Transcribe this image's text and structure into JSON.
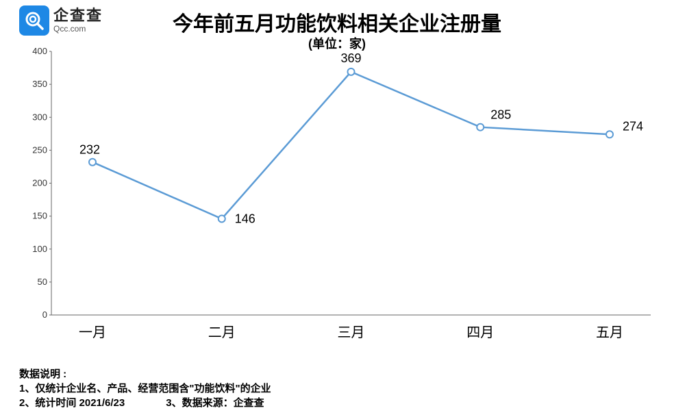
{
  "logo": {
    "cn": "企查查",
    "en": "Qcc.com"
  },
  "title": "今年前五月功能饮料相关企业注册量",
  "subtitle": "(单位：家)",
  "chart": {
    "type": "line",
    "categories": [
      "一月",
      "二月",
      "三月",
      "四月",
      "五月"
    ],
    "values": [
      232,
      146,
      369,
      285,
      274
    ],
    "line_color": "#5b9bd5",
    "marker_color": "#5b9bd5",
    "marker_size": 5,
    "ylim": [
      0,
      400
    ],
    "ytick_step": 50,
    "background_color": "#ffffff",
    "axis_color": "#666666",
    "label_fontsize": 18,
    "xtick_fontsize": 20,
    "ytick_fontsize": 13
  },
  "footnotes": {
    "heading": "数据说明 :",
    "line1": "1、仅统计企业名、产品、经营范围含\"功能饮料\"的企业",
    "line2a": "2、统计时间 2021/6/23",
    "line2b": "3、数据来源：企查查"
  }
}
